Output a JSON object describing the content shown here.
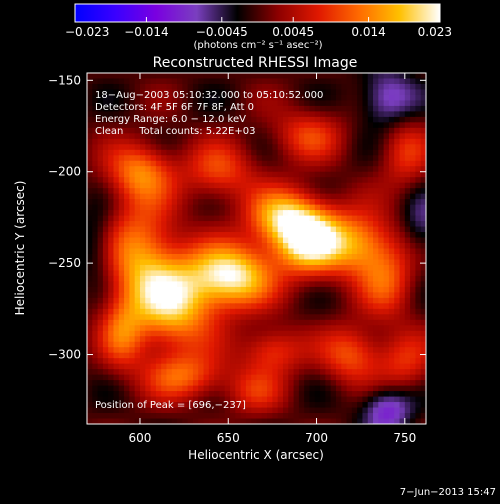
{
  "chart_data": {
    "type": "heatmap",
    "title": "Reconstructed RHESSI Image",
    "xlabel": "Heliocentric X (arcsec)",
    "ylabel": "Heliocentric Y (arcsec)",
    "xlim": [
      570,
      762
    ],
    "ylim": [
      -338,
      -146
    ],
    "x_ticks": [
      600,
      650,
      700,
      750
    ],
    "x_tick_labels": [
      "600",
      "650",
      "700",
      "750"
    ],
    "y_ticks": [
      -150,
      -200,
      -250,
      -300
    ],
    "y_tick_labels": [
      "−150",
      "−200",
      "−250",
      "−300"
    ],
    "colorbar": {
      "range": [
        -0.023,
        0.023
      ],
      "ticks": [
        -0.023,
        -0.014,
        -0.0045,
        0.0045,
        0.014,
        0.023
      ],
      "tick_labels": [
        "−0.023",
        "−0.014",
        "−0.0045",
        "0.0045",
        "0.014",
        "0.023"
      ],
      "units_label": "(photons cm⁻² s⁻¹ asec⁻²)"
    },
    "annotations": [
      "18−Aug−2003 05:10:32.000 to 05:10:52.000",
      "Detectors: 4F 5F 6F 7F 8F, Att 0",
      "Energy Range: 6.0 − 12.0 keV",
      "Clean     Total counts: 5.22E+03"
    ],
    "peak_label": "Position of Peak = [696,−237]",
    "peak": [
      696,
      -237
    ],
    "sources": [
      {
        "x": 696,
        "y": -237,
        "amp": 0.023,
        "sx": 14,
        "sy": 13
      },
      {
        "x": 652,
        "y": -257,
        "amp": 0.022,
        "sx": 16,
        "sy": 12
      },
      {
        "x": 620,
        "y": -272,
        "amp": 0.018,
        "sx": 16,
        "sy": 18
      },
      {
        "x": 600,
        "y": -246,
        "amp": 0.014,
        "sx": 14,
        "sy": 22
      },
      {
        "x": 680,
        "y": -225,
        "amp": 0.015,
        "sx": 14,
        "sy": 11
      },
      {
        "x": 725,
        "y": -240,
        "amp": 0.014,
        "sx": 13,
        "sy": 12
      },
      {
        "x": 600,
        "y": -200,
        "amp": 0.013,
        "sx": 13,
        "sy": 11
      },
      {
        "x": 645,
        "y": -200,
        "amp": 0.01,
        "sx": 14,
        "sy": 11
      },
      {
        "x": 695,
        "y": -180,
        "amp": 0.009,
        "sx": 14,
        "sy": 10
      },
      {
        "x": 750,
        "y": -190,
        "amp": 0.008,
        "sx": 10,
        "sy": 14
      },
      {
        "x": 740,
        "y": -260,
        "amp": 0.01,
        "sx": 11,
        "sy": 14
      },
      {
        "x": 750,
        "y": -305,
        "amp": 0.008,
        "sx": 11,
        "sy": 12
      },
      {
        "x": 720,
        "y": -300,
        "amp": 0.011,
        "sx": 12,
        "sy": 11
      },
      {
        "x": 675,
        "y": -298,
        "amp": 0.01,
        "sx": 12,
        "sy": 9
      },
      {
        "x": 625,
        "y": -312,
        "amp": 0.011,
        "sx": 16,
        "sy": 9
      },
      {
        "x": 590,
        "y": -288,
        "amp": 0.01,
        "sx": 9,
        "sy": 14
      },
      {
        "x": 665,
        "y": -320,
        "amp": 0.007,
        "sx": 12,
        "sy": 9
      },
      {
        "x": 740,
        "y": -160,
        "amp": -0.01,
        "sx": 11,
        "sy": 11
      },
      {
        "x": 740,
        "y": -330,
        "amp": -0.011,
        "sx": 10,
        "sy": 9
      },
      {
        "x": 575,
        "y": -240,
        "amp": -0.006,
        "sx": 8,
        "sy": 14
      },
      {
        "x": 760,
        "y": -230,
        "amp": -0.006,
        "sx": 8,
        "sy": 12
      }
    ],
    "colors": {
      "colormap": [
        "#0000ff",
        "#3a00ff",
        "#7a00e0",
        "#7a3fbf",
        "#000000",
        "#8c0000",
        "#e01800",
        "#ff6a00",
        "#ffc000",
        "#ffffff"
      ]
    }
  },
  "footer": {
    "date": "7−Jun−2013 15:47"
  }
}
